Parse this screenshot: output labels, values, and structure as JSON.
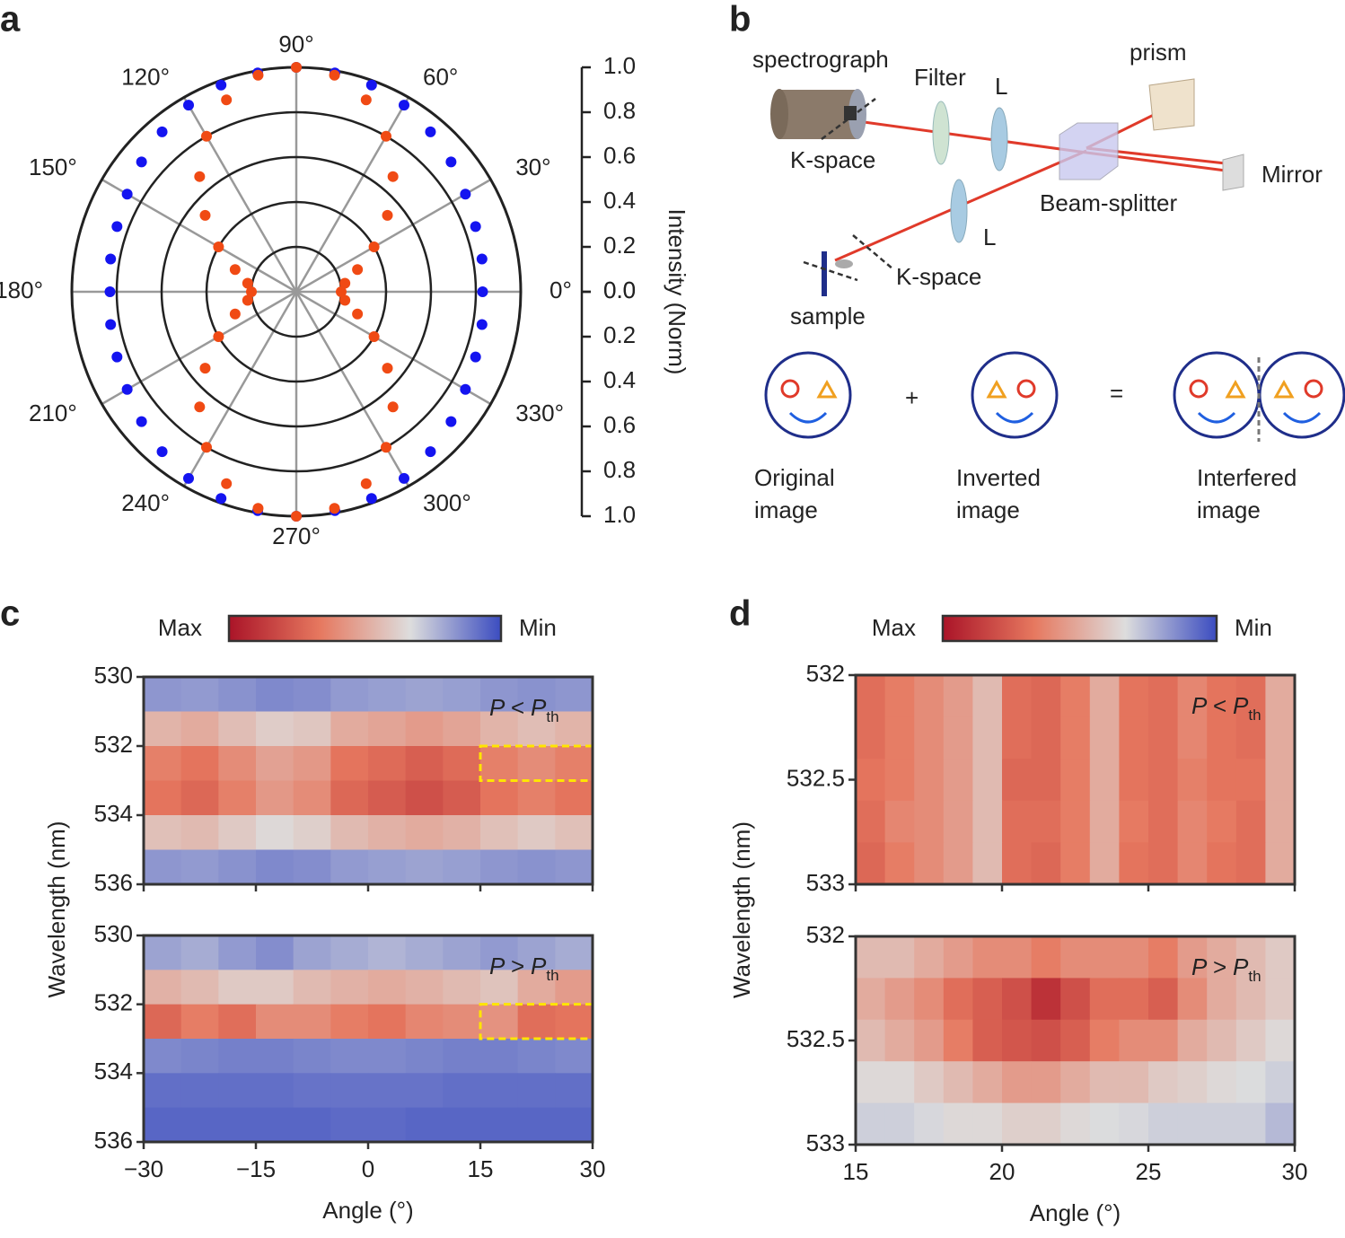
{
  "panel_labels": [
    "a",
    "b",
    "c",
    "d"
  ],
  "chart_data": [
    {
      "type": "polar_scatter",
      "ylabel": "Intensity (Norm)",
      "rlim": [
        0,
        1
      ],
      "rticks": [
        {
          "value": 0,
          "label": "0.0"
        },
        0.2,
        0.4,
        0.6,
        0.8,
        {
          "value": 1,
          "label": "1.0"
        }
      ],
      "angle_ticks": [
        {
          "value": 0,
          "label": "0°"
        },
        {
          "value": 30,
          "label": "30°"
        },
        {
          "value": 60,
          "label": "60°"
        },
        {
          "value": 90,
          "label": "90°"
        },
        {
          "value": 120,
          "label": "120°"
        },
        {
          "value": 150,
          "label": "150°"
        },
        {
          "value": 180,
          "label": "180°"
        },
        {
          "value": 210,
          "label": "210°"
        },
        {
          "value": 240,
          "label": "240°"
        },
        {
          "value": 270,
          "label": "270°"
        },
        {
          "value": 300,
          "label": "300°"
        },
        {
          "value": 330,
          "label": "330°"
        }
      ],
      "theta": [
        0,
        10,
        20,
        30,
        40,
        50,
        60,
        70,
        80,
        90,
        100,
        110,
        120,
        130,
        140,
        150,
        160,
        170,
        180,
        190,
        200,
        210,
        220,
        230,
        240,
        250,
        260,
        270,
        280,
        290,
        300,
        310,
        320,
        330,
        340,
        350
      ],
      "series": [
        {
          "color": "#1414f0",
          "values": [
            0.83,
            0.84,
            0.85,
            0.87,
            0.9,
            0.93,
            0.96,
            0.98,
            0.99,
            1.0,
            0.99,
            0.98,
            0.96,
            0.93,
            0.9,
            0.87,
            0.85,
            0.84,
            0.83,
            0.84,
            0.85,
            0.87,
            0.9,
            0.93,
            0.96,
            0.98,
            0.99,
            1.0,
            0.99,
            0.98,
            0.96,
            0.93,
            0.9,
            0.87,
            0.85,
            0.84
          ]
        },
        {
          "color": "#f04a14",
          "values": [
            0.2,
            0.22,
            0.29,
            0.4,
            0.53,
            0.67,
            0.8,
            0.91,
            0.98,
            1.0,
            0.98,
            0.91,
            0.8,
            0.67,
            0.53,
            0.4,
            0.29,
            0.22,
            0.2,
            0.22,
            0.29,
            0.4,
            0.53,
            0.67,
            0.8,
            0.91,
            0.98,
            1.0,
            0.98,
            0.91,
            0.8,
            0.67,
            0.53,
            0.4,
            0.29,
            0.22
          ]
        }
      ]
    },
    {
      "type": "heatmap",
      "colormap": [
        "#3b4cc0",
        "#dddddd",
        "#e6785f",
        "#aa1428"
      ],
      "colorbar": {
        "max_label": "Max",
        "min_label": "Min"
      },
      "xlabel": "Angle (°)",
      "ylabel": "Wavelength (nm)",
      "xlim": [
        -30,
        30
      ],
      "xticks": [
        {
          "value": -30,
          "label": "−30"
        },
        {
          "value": -15,
          "label": "−15"
        },
        0,
        15,
        30
      ],
      "ylim": [
        530,
        536
      ],
      "yticks": [
        530,
        532,
        534,
        536
      ],
      "yaxis_inverted": true,
      "highlight_color": "#ffe500",
      "panels": [
        {
          "annotation": {
            "main": "P < P",
            "sub": "th"
          },
          "highlight": {
            "x": [
              15,
              30
            ],
            "y": [
              532,
              533
            ]
          },
          "z": [
            [
              0.17,
              0.18,
              0.16,
              0.14,
              0.15,
              0.18,
              0.19,
              0.2,
              0.19,
              0.17,
              0.16,
              0.17
            ],
            [
              0.47,
              0.5,
              0.44,
              0.39,
              0.41,
              0.5,
              0.52,
              0.55,
              0.52,
              0.47,
              0.44,
              0.47
            ],
            [
              0.64,
              0.68,
              0.6,
              0.53,
              0.56,
              0.68,
              0.71,
              0.75,
              0.71,
              0.64,
              0.6,
              0.64
            ],
            [
              0.68,
              0.72,
              0.64,
              0.56,
              0.6,
              0.72,
              0.76,
              0.8,
              0.76,
              0.68,
              0.64,
              0.68
            ],
            [
              0.43,
              0.45,
              0.4,
              0.35,
              0.38,
              0.45,
              0.48,
              0.5,
              0.48,
              0.43,
              0.4,
              0.43
            ],
            [
              0.17,
              0.18,
              0.16,
              0.14,
              0.15,
              0.18,
              0.19,
              0.2,
              0.19,
              0.17,
              0.16,
              0.17
            ]
          ]
        },
        {
          "annotation": {
            "main": "P > P",
            "sub": "th"
          },
          "highlight": {
            "x": [
              15,
              30
            ],
            "y": [
              532,
              533
            ]
          },
          "z": [
            [
              0.2,
              0.22,
              0.18,
              0.15,
              0.2,
              0.22,
              0.24,
              0.22,
              0.2,
              0.18,
              0.2,
              0.22
            ],
            [
              0.48,
              0.45,
              0.4,
              0.4,
              0.45,
              0.48,
              0.5,
              0.48,
              0.45,
              0.42,
              0.5,
              0.55
            ],
            [
              0.72,
              0.65,
              0.7,
              0.6,
              0.6,
              0.65,
              0.68,
              0.62,
              0.6,
              0.58,
              0.7,
              0.68
            ],
            [
              0.14,
              0.13,
              0.12,
              0.12,
              0.13,
              0.14,
              0.14,
              0.13,
              0.12,
              0.12,
              0.13,
              0.14
            ],
            [
              0.08,
              0.08,
              0.08,
              0.08,
              0.09,
              0.09,
              0.09,
              0.09,
              0.08,
              0.08,
              0.08,
              0.08
            ],
            [
              0.06,
              0.06,
              0.06,
              0.06,
              0.06,
              0.07,
              0.07,
              0.06,
              0.06,
              0.06,
              0.06,
              0.06
            ]
          ]
        }
      ]
    },
    {
      "type": "heatmap",
      "colormap": [
        "#3b4cc0",
        "#dddddd",
        "#e6785f",
        "#aa1428"
      ],
      "colorbar": {
        "max_label": "Max",
        "min_label": "Min"
      },
      "xlabel": "Angle (°)",
      "ylabel": "Wavelength (nm)",
      "xlim": [
        15,
        30
      ],
      "xticks": [
        15,
        20,
        25,
        30
      ],
      "ylim": [
        532,
        533
      ],
      "yticks": [
        532,
        532.5,
        533
      ],
      "yaxis_inverted": true,
      "panels": [
        {
          "annotation": {
            "main": "P < P",
            "sub": "th"
          },
          "z": [
            [
              0.7,
              0.65,
              0.6,
              0.55,
              0.45,
              0.7,
              0.72,
              0.65,
              0.5,
              0.68,
              0.7,
              0.62,
              0.68,
              0.7,
              0.5
            ],
            [
              0.7,
              0.65,
              0.6,
              0.55,
              0.45,
              0.7,
              0.72,
              0.65,
              0.5,
              0.68,
              0.7,
              0.62,
              0.68,
              0.7,
              0.5
            ],
            [
              0.68,
              0.65,
              0.6,
              0.55,
              0.45,
              0.72,
              0.72,
              0.65,
              0.5,
              0.68,
              0.7,
              0.64,
              0.68,
              0.68,
              0.5
            ],
            [
              0.7,
              0.62,
              0.6,
              0.55,
              0.45,
              0.7,
              0.7,
              0.65,
              0.5,
              0.66,
              0.7,
              0.62,
              0.66,
              0.7,
              0.5
            ],
            [
              0.72,
              0.65,
              0.6,
              0.55,
              0.45,
              0.7,
              0.72,
              0.65,
              0.5,
              0.68,
              0.7,
              0.62,
              0.68,
              0.7,
              0.5
            ]
          ]
        },
        {
          "annotation": {
            "main": "P > P",
            "sub": "th"
          },
          "z": [
            [
              0.45,
              0.45,
              0.5,
              0.55,
              0.6,
              0.6,
              0.65,
              0.6,
              0.6,
              0.6,
              0.65,
              0.55,
              0.5,
              0.45,
              0.4
            ],
            [
              0.5,
              0.55,
              0.6,
              0.7,
              0.75,
              0.8,
              0.9,
              0.8,
              0.7,
              0.7,
              0.75,
              0.6,
              0.5,
              0.45,
              0.4
            ],
            [
              0.45,
              0.5,
              0.55,
              0.65,
              0.75,
              0.78,
              0.8,
              0.75,
              0.65,
              0.6,
              0.6,
              0.5,
              0.45,
              0.4,
              0.35
            ],
            [
              0.35,
              0.35,
              0.4,
              0.45,
              0.5,
              0.55,
              0.55,
              0.5,
              0.45,
              0.45,
              0.4,
              0.38,
              0.35,
              0.33,
              0.3
            ],
            [
              0.3,
              0.3,
              0.32,
              0.35,
              0.35,
              0.38,
              0.38,
              0.35,
              0.33,
              0.32,
              0.3,
              0.3,
              0.3,
              0.3,
              0.25
            ]
          ]
        }
      ]
    }
  ],
  "diagram": {
    "labels": {
      "spectrograph": "spectrograph",
      "filter": "Filter",
      "lens_top": "L",
      "prism": "prism",
      "kspace_top": "K-space",
      "mirror": "Mirror",
      "beam_splitter": "Beam-splitter",
      "lens_bottom": "L",
      "kspace_bottom": "K-space",
      "sample": "sample",
      "plus": "+",
      "equals": "="
    },
    "images": [
      {
        "line1": "Original",
        "line2": "image"
      },
      {
        "line1": "Inverted",
        "line2": "image"
      },
      {
        "line1": "Interfered",
        "line2": "image"
      }
    ]
  }
}
